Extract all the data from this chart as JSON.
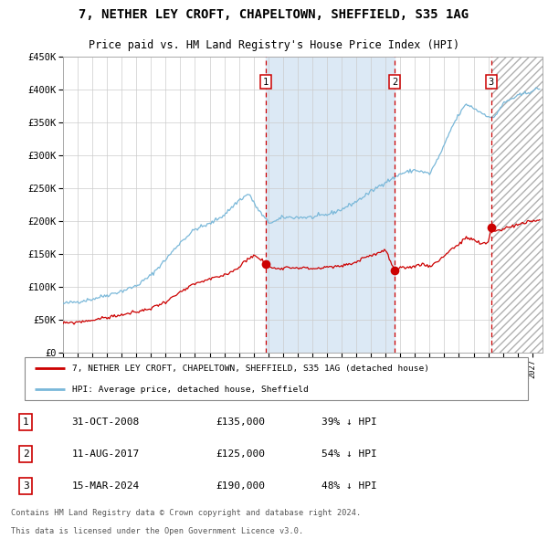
{
  "title": "7, NETHER LEY CROFT, CHAPELTOWN, SHEFFIELD, S35 1AG",
  "subtitle": "Price paid vs. HM Land Registry's House Price Index (HPI)",
  "legend_line1": "7, NETHER LEY CROFT, CHAPELTOWN, SHEFFIELD, S35 1AG (detached house)",
  "legend_line2": "HPI: Average price, detached house, Sheffield",
  "transactions": [
    {
      "num": 1,
      "date": "31-OCT-2008",
      "price": 135000,
      "pct": "39%",
      "dir": "↓"
    },
    {
      "num": 2,
      "date": "11-AUG-2017",
      "price": 125000,
      "pct": "54%",
      "dir": "↓"
    },
    {
      "num": 3,
      "date": "15-MAR-2024",
      "price": 190000,
      "pct": "48%",
      "dir": "↓"
    }
  ],
  "footer1": "Contains HM Land Registry data © Crown copyright and database right 2024.",
  "footer2": "This data is licensed under the Open Government Licence v3.0.",
  "hpi_color": "#7ab8d9",
  "price_color": "#cc0000",
  "vline_color": "#cc0000",
  "shade_color": "#dce9f5",
  "ylim": [
    0,
    450000
  ],
  "yticks": [
    0,
    50000,
    100000,
    150000,
    200000,
    250000,
    300000,
    350000,
    400000,
    450000
  ],
  "xstart": 1995.3,
  "xend": 2027.7,
  "transaction_dates_decimal": [
    2008.833,
    2017.611,
    2024.208
  ],
  "hpi_keypoints_x": [
    1995.0,
    1996.0,
    1997.0,
    1998.0,
    1999.0,
    2000.0,
    2001.0,
    2002.0,
    2003.0,
    2004.0,
    2005.0,
    2006.0,
    2007.0,
    2007.7,
    2008.0,
    2008.5,
    2009.0,
    2009.5,
    2010.0,
    2011.0,
    2012.0,
    2013.0,
    2014.0,
    2015.0,
    2016.0,
    2017.0,
    2017.5,
    2018.0,
    2019.0,
    2020.0,
    2020.5,
    2021.0,
    2021.5,
    2022.0,
    2022.5,
    2023.0,
    2023.5,
    2024.0,
    2024.3,
    2024.7,
    2025.0,
    2025.5,
    2026.0,
    2027.0,
    2027.5
  ],
  "hpi_keypoints_y": [
    75000,
    78000,
    82000,
    88000,
    94000,
    102000,
    118000,
    142000,
    168000,
    188000,
    196000,
    210000,
    232000,
    242000,
    228000,
    212000,
    198000,
    200000,
    206000,
    206000,
    206000,
    210000,
    218000,
    230000,
    245000,
    260000,
    265000,
    272000,
    278000,
    272000,
    292000,
    315000,
    342000,
    362000,
    378000,
    372000,
    365000,
    360000,
    355000,
    368000,
    378000,
    385000,
    390000,
    398000,
    402000
  ],
  "red_keypoints_x": [
    1995.0,
    1996.0,
    1997.0,
    1998.0,
    1999.0,
    2000.0,
    2001.0,
    2002.0,
    2003.0,
    2004.0,
    2005.0,
    2006.0,
    2007.0,
    2007.5,
    2008.0,
    2008.5,
    2008.833,
    2009.0,
    2009.5,
    2010.0,
    2011.0,
    2012.0,
    2013.0,
    2014.0,
    2015.0,
    2015.5,
    2016.0,
    2016.5,
    2017.0,
    2017.611,
    2018.0,
    2018.5,
    2019.0,
    2019.5,
    2020.0,
    2020.5,
    2021.0,
    2021.5,
    2022.0,
    2022.5,
    2023.0,
    2023.5,
    2024.0,
    2024.208,
    2024.5,
    2025.0,
    2025.5,
    2026.0,
    2027.0,
    2027.5
  ],
  "red_keypoints_y": [
    45000,
    47000,
    50000,
    54000,
    58000,
    62000,
    68000,
    78000,
    92000,
    105000,
    112000,
    118000,
    130000,
    142000,
    148000,
    142000,
    135000,
    132000,
    128000,
    130000,
    130000,
    128000,
    130000,
    132000,
    138000,
    145000,
    148000,
    152000,
    156000,
    125000,
    128000,
    130000,
    132000,
    135000,
    132000,
    138000,
    148000,
    158000,
    165000,
    175000,
    172000,
    165000,
    168000,
    190000,
    185000,
    188000,
    192000,
    195000,
    200000,
    202000
  ]
}
